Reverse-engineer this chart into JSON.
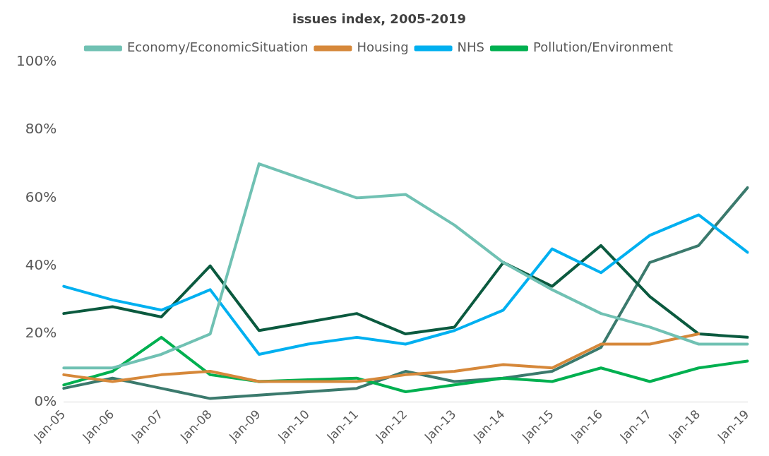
{
  "chart_data": {
    "type": "line",
    "title": "issues index, 2005-2019",
    "categories": [
      "Jan-05",
      "Jan-06",
      "Jan-07",
      "Jan-08",
      "Jan-09",
      "Jan-10",
      "Jan-11",
      "Jan-12",
      "Jan-13",
      "Jan-14",
      "Jan-15",
      "Jan-16",
      "Jan-17",
      "Jan-18",
      "Jan-19"
    ],
    "series": [
      {
        "name": "Economy/EconomicSituation",
        "color": "#70c1b3",
        "values": [
          10,
          10,
          14,
          20,
          70,
          65,
          60,
          61,
          52,
          41,
          33,
          26,
          22,
          17,
          17
        ]
      },
      {
        "name": "Housing",
        "color": "#d6883a",
        "values": [
          8,
          6,
          8,
          9,
          6,
          6,
          6,
          8,
          9,
          11,
          10,
          17,
          17,
          20,
          null
        ]
      },
      {
        "name": "NHS",
        "color": "#00b0f0",
        "values": [
          34,
          30,
          27,
          33,
          14,
          17,
          19,
          17,
          21,
          27,
          45,
          38,
          49,
          55,
          44
        ]
      },
      {
        "name": "Pollution/Environment",
        "color": "#00b050",
        "values": [
          5,
          9,
          19,
          8,
          6,
          6.5,
          7,
          3,
          5,
          7,
          6,
          10,
          6,
          10,
          12
        ]
      },
      {
        "color": "#0b5a3f",
        "values": [
          26,
          28,
          25,
          40,
          21,
          23.5,
          26,
          20,
          22,
          41,
          34,
          46,
          31,
          20,
          19
        ]
      },
      {
        "color": "#3b7a6d",
        "values": [
          4,
          7,
          4,
          1,
          2,
          3,
          4,
          9,
          6,
          7,
          9,
          16,
          41,
          46,
          63
        ]
      }
    ],
    "ylim": [
      0,
      100
    ],
    "yticks": [
      {
        "value": 0,
        "label": "0%"
      },
      {
        "value": 20,
        "label": "20%"
      },
      {
        "value": 40,
        "label": "40%"
      },
      {
        "value": 60,
        "label": "60%"
      },
      {
        "value": 80,
        "label": "80%"
      },
      {
        "value": 100,
        "label": "100%"
      }
    ],
    "grid": false,
    "legend": "top",
    "marker": "none",
    "line_style": "solid"
  }
}
